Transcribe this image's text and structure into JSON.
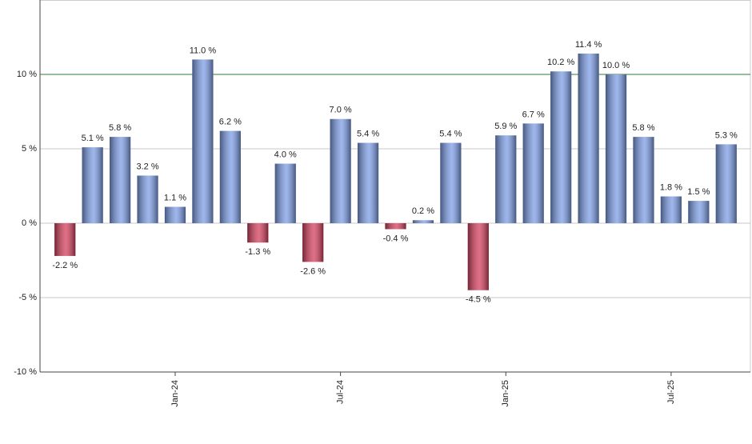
{
  "chart_data": {
    "type": "bar",
    "categories": [
      null,
      null,
      null,
      null,
      "Jan-24",
      null,
      null,
      null,
      null,
      null,
      "Jul-24",
      null,
      null,
      null,
      null,
      null,
      "Jan-25",
      null,
      null,
      null,
      null,
      null,
      "Jul-25",
      null,
      null
    ],
    "values": [
      -2.2,
      5.1,
      5.8,
      3.2,
      1.1,
      11.0,
      6.2,
      -1.3,
      4.0,
      -2.6,
      7.0,
      5.4,
      -0.4,
      0.2,
      5.4,
      -4.5,
      5.9,
      6.7,
      10.2,
      11.4,
      10.0,
      5.8,
      1.8,
      1.5,
      5.3
    ],
    "value_labels": [
      "-2.2 %",
      "5.1 %",
      "5.8 %",
      "3.2 %",
      "1.1 %",
      "11.0 %",
      "6.2 %",
      "-1.3 %",
      "4.0 %",
      "-2.6 %",
      "7.0 %",
      "5.4 %",
      "-0.4 %",
      "0.2 %",
      "5.4 %",
      "-4.5 %",
      "5.9 %",
      "6.7 %",
      "10.2 %",
      "11.4 %",
      "10.0 %",
      "5.8 %",
      "1.8 %",
      "1.5 %",
      "5.3 %"
    ],
    "color": "#7d9ee6",
    "negative_color": "#d6405e",
    "ylim": [
      -10,
      15
    ],
    "yticks": [
      {
        "value": -10,
        "label": "-10 %"
      },
      {
        "value": -5,
        "label": "-5 %"
      },
      {
        "value": 0,
        "label": "0 %"
      },
      {
        "value": 5,
        "label": "5 %"
      },
      {
        "value": 10,
        "label": "10 %"
      }
    ],
    "reference_line": {
      "value": 10,
      "color": "#2e7d32"
    },
    "grid": true
  }
}
